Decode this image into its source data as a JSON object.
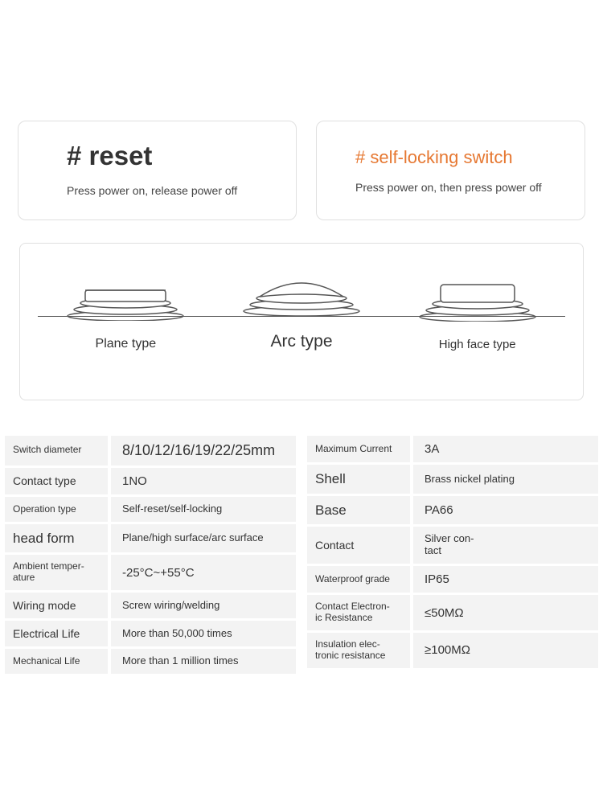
{
  "cards": {
    "reset": {
      "title": "# reset",
      "desc": "Press power on, release power off",
      "title_color": "#333333",
      "title_fontsize": 33
    },
    "selflock": {
      "title": "# self-locking switch",
      "desc": "Press power on, then press power off",
      "title_color": "#e67832",
      "title_fontsize": 22
    }
  },
  "types": {
    "baseline_color": "#555555",
    "icon_stroke": "#555555",
    "icon_fill": "#ffffff",
    "plane": {
      "label": "Plane type",
      "profile": "flat",
      "label_fontsize": 16
    },
    "arc": {
      "label": "Arc type",
      "profile": "arc",
      "label_fontsize": 21
    },
    "high": {
      "label": "High face type",
      "profile": "high",
      "label_fontsize": 15
    }
  },
  "specs_left": [
    {
      "label": "Switch diameter",
      "value": "8/10/12/16/19/22/25mm",
      "value_size": "large"
    },
    {
      "label": "Contact type",
      "value": "1NO",
      "label_size": "med",
      "value_size": "med"
    },
    {
      "label": "Operation type",
      "value": "Self-reset/self-locking"
    },
    {
      "label": "head form",
      "value": "Plane/high surface/arc surface",
      "label_size": "large"
    },
    {
      "label": "Ambient temper-\nature",
      "value": "-25°C~+55°C",
      "value_size": "med"
    },
    {
      "label": "Wiring mode",
      "value": "Screw wiring/welding",
      "label_size": "med"
    },
    {
      "label": "Electrical Life",
      "value": "More than 50,000 times",
      "label_size": "med"
    },
    {
      "label": "Mechanical Life",
      "value": "More than 1 million times"
    }
  ],
  "specs_right": [
    {
      "label": "Maximum Current",
      "value": "3A",
      "value_size": "med"
    },
    {
      "label": "Shell",
      "value": "Brass nickel plating",
      "label_size": "large"
    },
    {
      "label": "Base",
      "value": "PA66",
      "label_size": "large",
      "value_size": "med"
    },
    {
      "label": "Contact",
      "value": "Silver con-\ntact",
      "label_size": "med"
    },
    {
      "label": "Waterproof grade",
      "value": "IP65",
      "value_size": "med"
    },
    {
      "label": "Contact Electron-\nic Resistance",
      "value": "≤50MΩ",
      "value_size": "med"
    },
    {
      "label": "Insulation elec-\ntronic resistance",
      "value": "≥100MΩ",
      "value_size": "med"
    }
  ],
  "colors": {
    "border": "#e0e0e0",
    "row_bg": "#f3f3f3",
    "text": "#333333",
    "orange": "#e67832"
  }
}
